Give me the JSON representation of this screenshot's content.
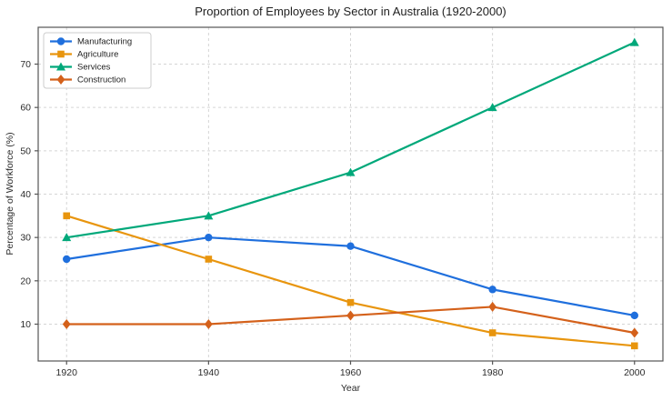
{
  "chart_data": {
    "type": "line",
    "title": "Proportion of Employees by Sector in Australia (1920-2000)",
    "xlabel": "Year",
    "ylabel": "Percentage of Workforce (%)",
    "x": [
      1920,
      1940,
      1960,
      1980,
      2000
    ],
    "series": [
      {
        "name": "Manufacturing",
        "color": "#1f6fdd",
        "marker": "circle",
        "values": [
          25,
          30,
          28,
          18,
          12
        ]
      },
      {
        "name": "Agriculture",
        "color": "#e8950e",
        "marker": "square",
        "values": [
          35,
          25,
          15,
          8,
          5
        ]
      },
      {
        "name": "Services",
        "color": "#00a87a",
        "marker": "triangle",
        "values": [
          30,
          35,
          45,
          60,
          75
        ]
      },
      {
        "name": "Construction",
        "color": "#d4611b",
        "marker": "diamond",
        "values": [
          10,
          10,
          12,
          14,
          8
        ]
      }
    ],
    "xticks": [
      1920,
      1940,
      1960,
      1980,
      2000
    ],
    "yticks": [
      10,
      20,
      30,
      40,
      50,
      60,
      70
    ],
    "xlim": [
      1916,
      2004
    ],
    "ylim": [
      1.5,
      78.5
    ],
    "grid": true,
    "legend_position": "upper-left",
    "colors": {
      "axis": "#555555",
      "grid": "#d5d5d5",
      "tick_text": "#2b2b2b",
      "legend_border": "#cccccc",
      "background": "#ffffff"
    }
  }
}
